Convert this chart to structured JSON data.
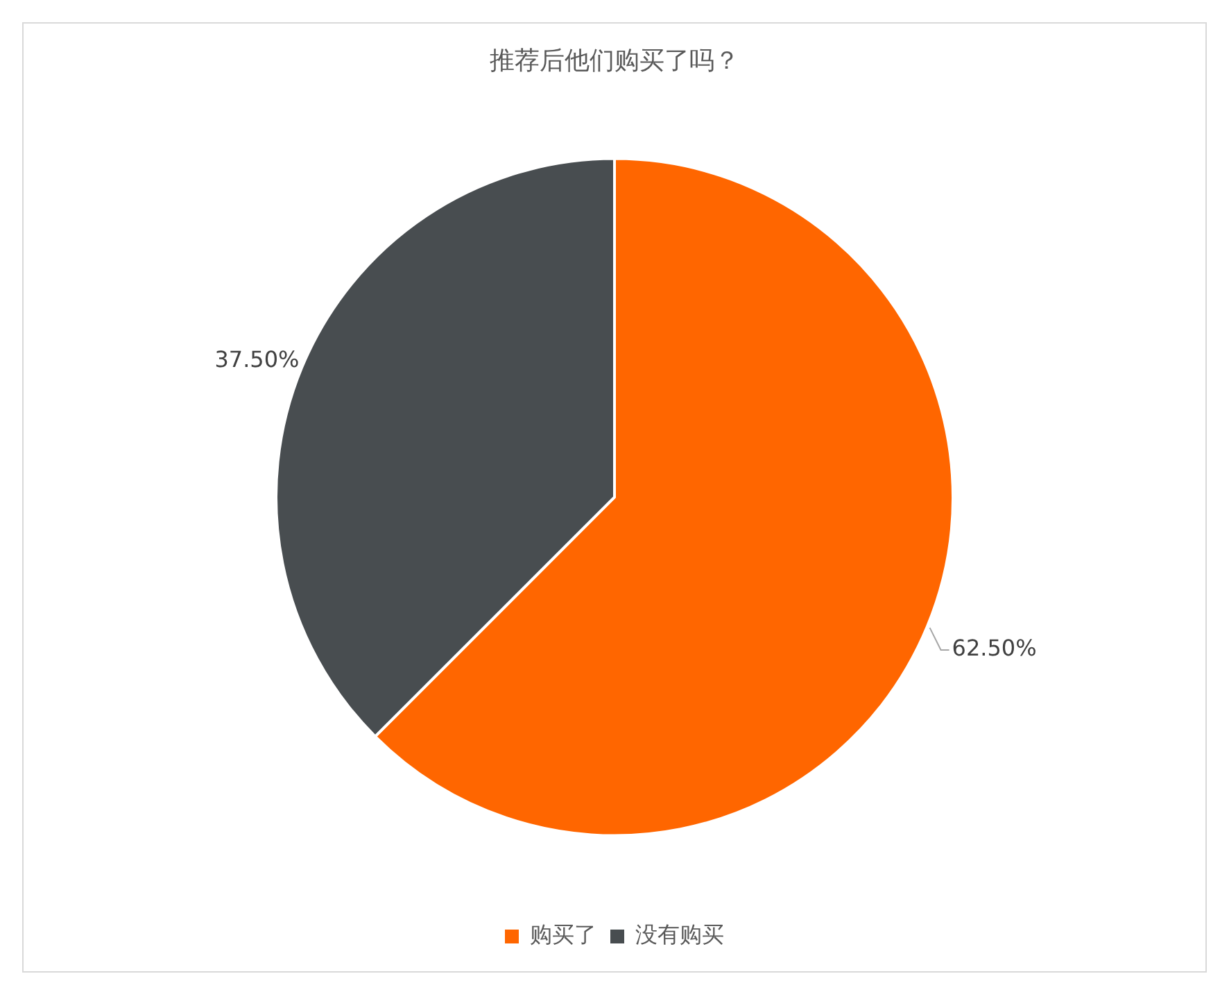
{
  "chart_data": {
    "type": "pie",
    "title": "推荐后他们购买了吗？",
    "categories": [
      "购买了",
      "没有购买"
    ],
    "values": [
      62.5,
      37.5
    ],
    "colors": [
      "#ff6600",
      "#484d50"
    ],
    "value_labels": [
      "62.50%",
      "37.50%"
    ],
    "legend": "bottom"
  }
}
